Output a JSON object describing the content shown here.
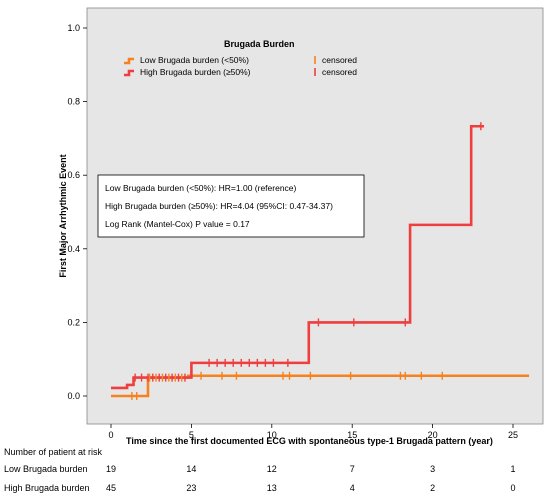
{
  "chart_data": {
    "type": "line",
    "subtype": "kaplan-meier",
    "ylabel": "First Major Arrhythmic Event",
    "xlabel": "Time since the first documented ECG with spontaneous type-1 Brugada pattern (year)",
    "xlim": [
      -2,
      26
    ],
    "ylim": [
      -0.04,
      1.05
    ],
    "xticks": [
      0,
      5,
      10,
      15,
      20,
      25
    ],
    "yticks": [
      "0.0",
      "0.2",
      "0.4",
      "0.6",
      "0.8",
      "1.0"
    ],
    "grid": false,
    "legend": {
      "title": "Brugada Burden",
      "position": "top",
      "censored_label": "censored"
    },
    "series": [
      {
        "name": "Low Brugada burden (<50%)",
        "color": "#f5821f",
        "steps": [
          [
            0,
            0.0
          ],
          [
            2.3,
            0.05
          ],
          [
            4.8,
            0.055
          ],
          [
            26,
            0.055
          ]
        ],
        "censored": [
          1.3,
          1.6,
          2.4,
          2.8,
          3.2,
          3.6,
          4.0,
          4.4,
          5.6,
          6.9,
          7.8,
          10.7,
          11.1,
          12.4,
          14.9,
          18.0,
          18.3,
          19.3,
          20.6
        ]
      },
      {
        "name": "High Brugada burden (≥50%)",
        "color": "#ee3e3e",
        "steps": [
          [
            0,
            0.022
          ],
          [
            1.0,
            0.03
          ],
          [
            1.4,
            0.05
          ],
          [
            5.0,
            0.09
          ],
          [
            12.3,
            0.2
          ],
          [
            18.6,
            0.465
          ],
          [
            22.4,
            0.733
          ],
          [
            23.2,
            0.733
          ]
        ],
        "censored": [
          1.5,
          1.9,
          2.3,
          2.6,
          3.0,
          3.4,
          3.8,
          4.2,
          4.6,
          6.1,
          6.6,
          7.1,
          7.6,
          8.1,
          8.6,
          9.1,
          9.6,
          10.1,
          11.0,
          12.9,
          15.1,
          18.3,
          23.0
        ]
      }
    ],
    "annotation_box": [
      "Low Brugada burden (<50%):  HR=1.00 (reference)",
      "High Brugada burden (≥50%):  HR=4.04 (95%CI: 0.47-34.37)",
      "Log Rank (Mantel-Cox) P value = 0.17"
    ],
    "risk_table": {
      "title": "Number of patient at risk",
      "times": [
        0,
        5,
        10,
        15,
        20,
        25
      ],
      "rows": [
        {
          "label": "Low Brugada burden",
          "values": [
            "19",
            "14",
            "12",
            "7",
            "3",
            "1"
          ]
        },
        {
          "label": "High Brugada burden",
          "values": [
            "45",
            "23",
            "13",
            "4",
            "2",
            "0"
          ]
        }
      ]
    },
    "colors": {
      "plot_background": "#e6e6e6",
      "low": "#f5821f",
      "high": "#ee3e3e"
    }
  }
}
